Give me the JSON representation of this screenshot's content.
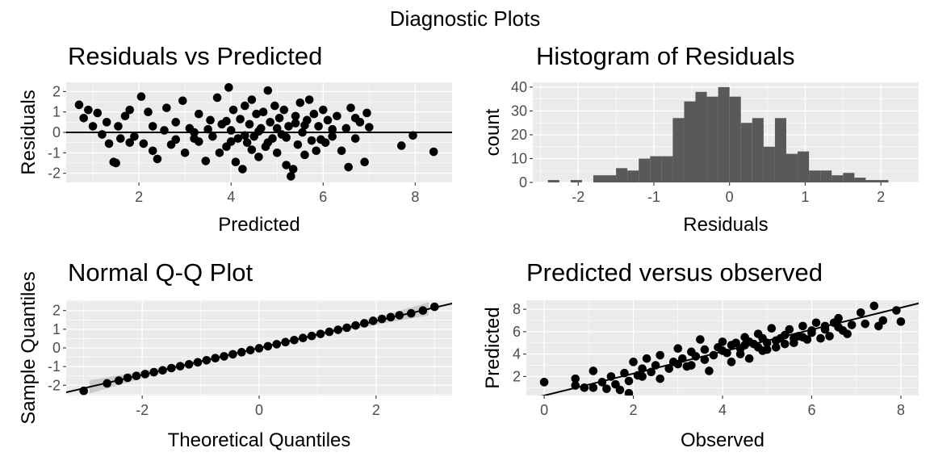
{
  "figure": {
    "title": "Diagnostic Plots"
  },
  "chart_data": [
    {
      "type": "scatter",
      "title": "Residuals vs Predicted",
      "xlabel": "Predicted",
      "ylabel": "Residuals",
      "xlim": [
        0.42,
        8.8
      ],
      "ylim": [
        -2.45,
        2.45
      ],
      "xticks": [
        2,
        4,
        6,
        8
      ],
      "yticks": [
        -2,
        -1,
        0,
        1,
        2
      ],
      "reference_line": {
        "type": "horizontal",
        "y": 0
      },
      "grid": true,
      "points": [
        [
          0.7,
          1.35
        ],
        [
          0.8,
          0.7
        ],
        [
          0.9,
          1.1
        ],
        [
          1.0,
          0.3
        ],
        [
          1.1,
          0.95
        ],
        [
          1.2,
          -0.1
        ],
        [
          1.3,
          0.5
        ],
        [
          1.35,
          -0.55
        ],
        [
          1.45,
          -1.45
        ],
        [
          1.5,
          -1.5
        ],
        [
          1.55,
          0.3
        ],
        [
          1.6,
          -0.3
        ],
        [
          1.7,
          0.8
        ],
        [
          1.8,
          1.1
        ],
        [
          1.9,
          -0.2
        ],
        [
          2.05,
          1.75
        ],
        [
          2.1,
          -0.55
        ],
        [
          2.2,
          1.0
        ],
        [
          2.3,
          -0.9
        ],
        [
          2.4,
          -1.3
        ],
        [
          2.55,
          0.1
        ],
        [
          2.6,
          1.2
        ],
        [
          2.7,
          -0.6
        ],
        [
          2.8,
          0.5
        ],
        [
          2.95,
          1.55
        ],
        [
          3.0,
          -1.0
        ],
        [
          3.1,
          0.2
        ],
        [
          3.2,
          -0.3
        ],
        [
          3.3,
          0.9
        ],
        [
          3.45,
          -1.4
        ],
        [
          3.55,
          0.6
        ],
        [
          3.6,
          -0.2
        ],
        [
          3.7,
          1.7
        ],
        [
          3.75,
          -1.0
        ],
        [
          3.8,
          0.4
        ],
        [
          3.9,
          -0.7
        ],
        [
          3.95,
          2.2
        ],
        [
          4.0,
          0.1
        ],
        [
          4.05,
          1.1
        ],
        [
          4.1,
          -1.45
        ],
        [
          4.15,
          -0.3
        ],
        [
          4.2,
          0.65
        ],
        [
          4.25,
          -1.8
        ],
        [
          4.3,
          1.3
        ],
        [
          4.35,
          -0.5
        ],
        [
          4.4,
          0.4
        ],
        [
          4.45,
          1.6
        ],
        [
          4.5,
          -0.2
        ],
        [
          4.55,
          0.9
        ],
        [
          4.6,
          -1.2
        ],
        [
          4.65,
          0.2
        ],
        [
          4.7,
          1.0
        ],
        [
          4.75,
          -0.7
        ],
        [
          4.8,
          2.05
        ],
        [
          4.85,
          0.5
        ],
        [
          4.9,
          -0.3
        ],
        [
          4.95,
          1.3
        ],
        [
          5.0,
          -1.0
        ],
        [
          5.05,
          0.7
        ],
        [
          5.1,
          -0.1
        ],
        [
          5.15,
          1.1
        ],
        [
          5.2,
          -1.6
        ],
        [
          5.25,
          0.3
        ],
        [
          5.3,
          -2.15
        ],
        [
          5.35,
          -1.8
        ],
        [
          5.4,
          0.8
        ],
        [
          5.45,
          -0.6
        ],
        [
          5.5,
          1.45
        ],
        [
          5.55,
          0.0
        ],
        [
          5.6,
          -1.1
        ],
        [
          5.65,
          0.6
        ],
        [
          5.7,
          1.6
        ],
        [
          5.75,
          -0.4
        ],
        [
          5.8,
          0.9
        ],
        [
          5.85,
          -0.9
        ],
        [
          5.9,
          0.3
        ],
        [
          6.0,
          1.1
        ],
        [
          6.05,
          -0.5
        ],
        [
          6.1,
          0.6
        ],
        [
          6.2,
          -0.2
        ],
        [
          6.3,
          0.8
        ],
        [
          6.4,
          -0.9
        ],
        [
          6.5,
          0.2
        ],
        [
          6.55,
          -1.7
        ],
        [
          6.6,
          1.2
        ],
        [
          6.7,
          -0.3
        ],
        [
          6.8,
          0.5
        ],
        [
          6.9,
          -1.45
        ],
        [
          6.95,
          0.95
        ],
        [
          7.0,
          0.25
        ],
        [
          7.7,
          -0.65
        ],
        [
          7.95,
          -0.15
        ],
        [
          8.4,
          -0.95
        ],
        [
          3.2,
          0.0
        ],
        [
          3.5,
          0.15
        ],
        [
          4.3,
          -0.15
        ],
        [
          4.6,
          0.05
        ],
        [
          5.0,
          0.2
        ],
        [
          5.2,
          -0.25
        ],
        [
          5.6,
          0.35
        ],
        [
          4.0,
          -0.45
        ],
        [
          4.8,
          -0.5
        ],
        [
          5.4,
          0.45
        ],
        [
          6.2,
          0.15
        ],
        [
          3.9,
          0.55
        ],
        [
          2.3,
          0.3
        ],
        [
          1.8,
          -0.5
        ],
        [
          6.7,
          0.7
        ],
        [
          4.45,
          -0.85
        ],
        [
          5.95,
          -0.35
        ],
        [
          3.3,
          -0.45
        ],
        [
          2.8,
          -0.35
        ]
      ]
    },
    {
      "type": "bar",
      "subtype": "histogram",
      "title": "Histogram of Residuals",
      "xlabel": "Residuals",
      "ylabel": "count",
      "xlim": [
        -2.6,
        2.5
      ],
      "ylim": [
        0,
        42
      ],
      "xticks": [
        -2,
        -1,
        0,
        1,
        2
      ],
      "yticks": [
        0,
        10,
        20,
        30,
        40
      ],
      "grid": true,
      "bin_width": 0.15,
      "bins_start": -2.4,
      "counts": [
        1,
        0,
        1,
        0,
        3,
        3,
        6,
        5,
        10,
        11,
        11,
        27,
        34,
        38,
        36,
        40,
        36,
        25,
        27,
        15,
        27,
        12,
        13,
        5,
        5,
        3,
        4,
        2,
        1,
        1
      ]
    },
    {
      "type": "scatter",
      "subtype": "qq",
      "title": "Normal Q-Q Plot",
      "xlabel": "Theoretical Quantiles",
      "ylabel": "Sample Quantiles",
      "xlim": [
        -3.3,
        3.3
      ],
      "ylim": [
        -2.55,
        2.55
      ],
      "xticks": [
        -2,
        0,
        2
      ],
      "yticks": [
        -2,
        -1,
        0,
        1,
        2
      ],
      "reference_line": {
        "intercept": 0.0,
        "slope": 0.72
      },
      "grid": true,
      "points": [
        [
          -3.0,
          -2.3
        ],
        [
          -2.6,
          -1.9
        ],
        [
          -2.4,
          -1.75
        ],
        [
          -2.25,
          -1.6
        ],
        [
          -2.1,
          -1.5
        ],
        [
          -1.95,
          -1.4
        ],
        [
          -1.8,
          -1.3
        ],
        [
          -1.65,
          -1.2
        ],
        [
          -1.5,
          -1.08
        ],
        [
          -1.35,
          -0.98
        ],
        [
          -1.2,
          -0.88
        ],
        [
          -1.05,
          -0.77
        ],
        [
          -0.9,
          -0.66
        ],
        [
          -0.75,
          -0.55
        ],
        [
          -0.6,
          -0.45
        ],
        [
          -0.45,
          -0.34
        ],
        [
          -0.3,
          -0.23
        ],
        [
          -0.15,
          -0.12
        ],
        [
          0.0,
          -0.02
        ],
        [
          0.15,
          0.09
        ],
        [
          0.3,
          0.2
        ],
        [
          0.45,
          0.31
        ],
        [
          0.6,
          0.42
        ],
        [
          0.75,
          0.53
        ],
        [
          0.9,
          0.64
        ],
        [
          1.05,
          0.75
        ],
        [
          1.2,
          0.86
        ],
        [
          1.35,
          0.97
        ],
        [
          1.5,
          1.08
        ],
        [
          1.65,
          1.2
        ],
        [
          1.8,
          1.32
        ],
        [
          1.95,
          1.45
        ],
        [
          2.1,
          1.55
        ],
        [
          2.25,
          1.65
        ],
        [
          2.4,
          1.75
        ],
        [
          2.6,
          1.85
        ],
        [
          2.8,
          2.0
        ],
        [
          3.0,
          2.2
        ]
      ],
      "confidence_band": true
    },
    {
      "type": "scatter",
      "title": "Predicted versus observed",
      "xlabel": "Observed",
      "ylabel": "Predicted",
      "xlim": [
        -0.4,
        8.4
      ],
      "ylim": [
        0.3,
        8.8
      ],
      "xticks": [
        0,
        2,
        4,
        6,
        8
      ],
      "yticks": [
        2,
        4,
        6,
        8
      ],
      "reference_line": {
        "intercept": 0.3,
        "slope": 0.98
      },
      "grid": true,
      "points": [
        [
          0.0,
          1.5
        ],
        [
          0.7,
          1.8
        ],
        [
          0.7,
          1.2
        ],
        [
          0.9,
          1.0
        ],
        [
          1.1,
          2.5
        ],
        [
          1.1,
          1.0
        ],
        [
          1.3,
          1.5
        ],
        [
          1.4,
          0.9
        ],
        [
          1.5,
          2.0
        ],
        [
          1.6,
          1.3
        ],
        [
          1.7,
          0.8
        ],
        [
          1.8,
          2.3
        ],
        [
          1.9,
          0.5
        ],
        [
          1.9,
          1.6
        ],
        [
          2.0,
          3.3
        ],
        [
          2.1,
          2.1
        ],
        [
          2.2,
          2.7
        ],
        [
          2.3,
          3.6
        ],
        [
          2.4,
          2.4
        ],
        [
          2.5,
          3.0
        ],
        [
          2.6,
          1.8
        ],
        [
          2.6,
          3.9
        ],
        [
          2.8,
          2.7
        ],
        [
          2.9,
          3.3
        ],
        [
          3.0,
          4.5
        ],
        [
          3.1,
          3.6
        ],
        [
          3.2,
          2.9
        ],
        [
          3.3,
          4.2
        ],
        [
          3.4,
          3.8
        ],
        [
          3.5,
          5.3
        ],
        [
          3.6,
          4.4
        ],
        [
          3.7,
          2.5
        ],
        [
          3.8,
          3.9
        ],
        [
          3.9,
          4.6
        ],
        [
          4.0,
          5.1
        ],
        [
          4.1,
          4.1
        ],
        [
          4.2,
          3.3
        ],
        [
          4.3,
          5.0
        ],
        [
          4.4,
          4.5
        ],
        [
          4.5,
          5.5
        ],
        [
          4.6,
          3.6
        ],
        [
          4.7,
          4.9
        ],
        [
          4.8,
          5.8
        ],
        [
          4.9,
          4.3
        ],
        [
          5.0,
          5.0
        ],
        [
          5.1,
          6.3
        ],
        [
          5.2,
          4.6
        ],
        [
          5.3,
          5.4
        ],
        [
          5.4,
          4.9
        ],
        [
          5.5,
          6.2
        ],
        [
          5.6,
          5.0
        ],
        [
          5.7,
          5.6
        ],
        [
          5.8,
          6.5
        ],
        [
          5.9,
          5.3
        ],
        [
          6.0,
          5.9
        ],
        [
          6.1,
          6.8
        ],
        [
          6.2,
          5.4
        ],
        [
          6.3,
          6.2
        ],
        [
          6.4,
          5.6
        ],
        [
          6.5,
          6.8
        ],
        [
          6.6,
          7.2
        ],
        [
          6.7,
          6.1
        ],
        [
          6.8,
          5.8
        ],
        [
          6.9,
          6.6
        ],
        [
          7.1,
          7.7
        ],
        [
          7.2,
          6.7
        ],
        [
          7.4,
          8.3
        ],
        [
          7.5,
          6.5
        ],
        [
          7.6,
          7.0
        ],
        [
          7.9,
          7.9
        ],
        [
          8.0,
          6.9
        ],
        [
          4.0,
          4.3
        ],
        [
          4.4,
          4.0
        ],
        [
          4.8,
          4.6
        ],
        [
          5.2,
          5.2
        ],
        [
          5.6,
          5.4
        ],
        [
          6.0,
          6.1
        ],
        [
          3.6,
          3.5
        ],
        [
          4.6,
          5.1
        ],
        [
          5.4,
          5.7
        ],
        [
          6.3,
          6.5
        ],
        [
          3.3,
          3.0
        ],
        [
          4.9,
          5.4
        ],
        [
          5.8,
          5.5
        ],
        [
          4.2,
          4.8
        ],
        [
          6.6,
          6.4
        ],
        [
          3.0,
          3.1
        ],
        [
          2.2,
          2.0
        ],
        [
          5.0,
          4.4
        ],
        [
          4.5,
          4.8
        ]
      ]
    }
  ]
}
